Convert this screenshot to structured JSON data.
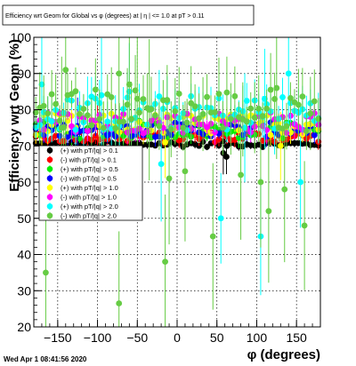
{
  "chart_data": {
    "type": "scatter",
    "title": "Efficiency wrt Geom for Global vs φ (degrees) at | η | <= 1.0 at pT > 0.11",
    "xlabel": "φ (degrees)",
    "ylabel": "Efficiency wrt Geom (%)",
    "xlim": [
      -180,
      180
    ],
    "ylim": [
      20,
      100
    ],
    "xticks": [
      -150,
      -100,
      -50,
      0,
      50,
      100,
      150
    ],
    "xtick_labels": [
      "−150",
      "−100",
      "−50",
      "0",
      "50",
      "100",
      "150"
    ],
    "yticks": [
      20,
      30,
      40,
      50,
      60,
      70,
      80,
      90,
      100
    ],
    "ytick_labels": [
      "20",
      "30",
      "40",
      "50",
      "60",
      "70",
      "80",
      "90",
      "100"
    ],
    "grid": true,
    "legend_position": "left-middle",
    "series": [
      {
        "name": "(+) with pT/|q| > 0.1",
        "color": "#000000",
        "marker": "circle",
        "y_mean": 70.5,
        "y_spread": 0.8,
        "err": 0.8,
        "outliers": [
          [
            -165,
            69
          ],
          [
            -120,
            69.5
          ],
          [
            58,
            68
          ],
          [
            62,
            67
          ]
        ]
      },
      {
        "name": "(-) with pT/|q| > 0.1",
        "color": "#ff0000",
        "marker": "circle",
        "y_mean": 72.5,
        "y_spread": 1.5,
        "err": 1.5,
        "outliers": [
          [
            -100,
            76
          ]
        ]
      },
      {
        "name": "(+) with pT/|q| > 0.5",
        "color": "#00ee00",
        "marker": "circle",
        "y_mean": 74.5,
        "y_spread": 2.5,
        "err": 2.0,
        "outliers": []
      },
      {
        "name": "(-) with pT/|q| > 0.5",
        "color": "#0000ff",
        "marker": "circle",
        "y_mean": 74.5,
        "y_spread": 2.0,
        "err": 2.0,
        "outliers": [
          [
            -125,
            75.5
          ]
        ]
      },
      {
        "name": "(+) with pT/|q| > 1.0",
        "color": "#ffff00",
        "marker": "circle",
        "y_mean": 76.0,
        "y_spread": 3.0,
        "err": 3.0,
        "outliers": [
          [
            -15,
            71
          ],
          [
            130,
            70
          ],
          [
            -170,
            75
          ]
        ]
      },
      {
        "name": "(-) with pT/|q| > 1.0",
        "color": "#ff00ff",
        "marker": "circle",
        "y_mean": 76.5,
        "y_spread": 3.0,
        "err": 3.0,
        "outliers": []
      },
      {
        "name": "(+) with pT/|q| > 2.0",
        "color": "#00ffff",
        "marker": "circle",
        "y_mean": 79.0,
        "y_spread": 5.0,
        "err": 5.0,
        "outliers": [
          [
            -170,
            87
          ],
          [
            -60,
            85
          ],
          [
            55,
            50
          ],
          [
            105,
            45
          ],
          [
            110,
            83
          ],
          [
            155,
            60
          ],
          [
            -20,
            65
          ],
          [
            85,
            75
          ],
          [
            -95,
            84
          ],
          [
            140,
            90
          ]
        ]
      },
      {
        "name": "(-) with pT/|q| > 2.0",
        "color": "#66cc44",
        "marker": "circle",
        "y_mean": 80.0,
        "y_spread": 6.0,
        "err": 7.0,
        "outliers": [
          [
            -165,
            35
          ],
          [
            -145,
            75
          ],
          [
            -73,
            26.5
          ],
          [
            -73,
            90
          ],
          [
            -60,
            87
          ],
          [
            -10,
            61
          ],
          [
            -15,
            38
          ],
          [
            -35,
            80
          ],
          [
            10,
            63
          ],
          [
            45,
            45
          ],
          [
            80,
            62
          ],
          [
            105,
            60
          ],
          [
            115,
            52
          ],
          [
            125,
            86
          ],
          [
            135,
            58
          ],
          [
            160,
            48
          ],
          [
            -140,
            91
          ],
          [
            -50,
            83
          ]
        ]
      }
    ]
  },
  "footer": {
    "timestamp": "Wed Apr  1 08:41:56 2020"
  }
}
